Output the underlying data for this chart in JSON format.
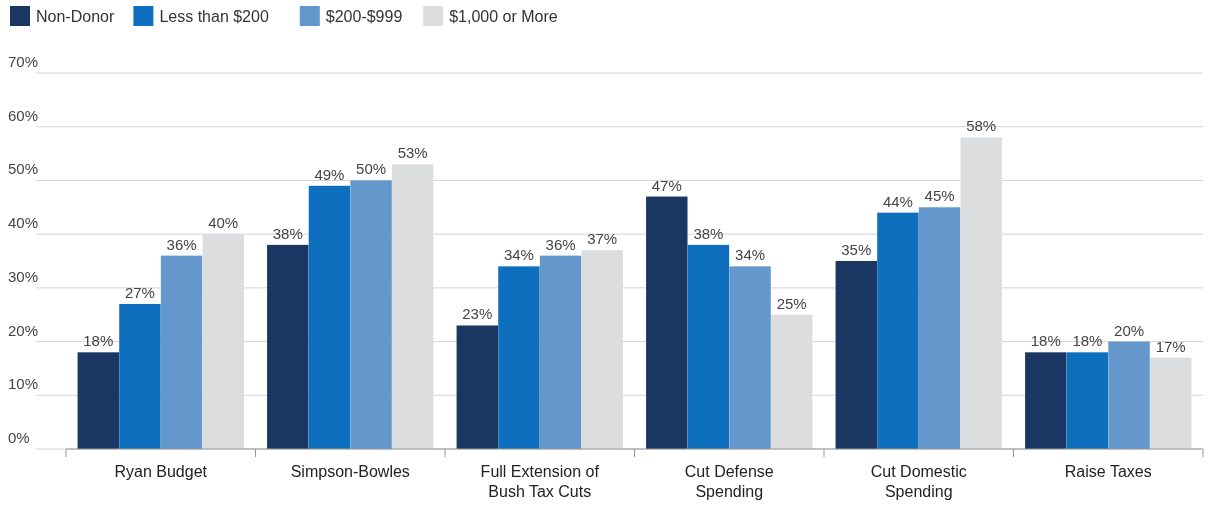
{
  "chart_data": {
    "type": "bar",
    "categories": [
      "Ryan Budget",
      "Simpson-Bowles",
      "Full Extension of Bush Tax Cuts",
      "Cut Defense Spending",
      "Cut Domestic Spending",
      "Raise Taxes"
    ],
    "series": [
      {
        "name": "Non-Donor",
        "color": "#1a3764",
        "values": [
          18,
          38,
          23,
          47,
          35,
          18
        ],
        "value_labels": [
          "18%",
          "38%",
          "23%",
          "47%",
          "35%",
          "18%"
        ]
      },
      {
        "name": "Less than $200",
        "color": "#0f6fbf",
        "values": [
          27,
          49,
          34,
          38,
          44,
          18
        ],
        "value_labels": [
          "27%",
          "49%",
          "34%",
          "38%",
          "44%",
          "18%"
        ]
      },
      {
        "name": "$200-$999",
        "color": "#6497cc",
        "values": [
          36,
          50,
          36,
          34,
          45,
          20
        ],
        "value_labels": [
          "36%",
          "50%",
          "36%",
          "34%",
          "45%",
          "20%"
        ]
      },
      {
        "name": "$1,000 or More",
        "color": "#dcdddf",
        "values": [
          40,
          53,
          37,
          25,
          58,
          17
        ],
        "value_labels": [
          "40%",
          "53%",
          "37%",
          "25%",
          "58%",
          "17%"
        ]
      }
    ],
    "ylim": [
      0,
      70
    ],
    "yticks": [
      {
        "value": 0,
        "label": "0%"
      },
      {
        "value": 10,
        "label": "10%"
      },
      {
        "value": 20,
        "label": "20%"
      },
      {
        "value": 30,
        "label": "30%"
      },
      {
        "value": 40,
        "label": "40%"
      },
      {
        "value": 50,
        "label": "50%"
      },
      {
        "value": 60,
        "label": "60%"
      },
      {
        "value": 70,
        "label": "70%"
      }
    ],
    "grid": "y",
    "legend": "top left"
  }
}
